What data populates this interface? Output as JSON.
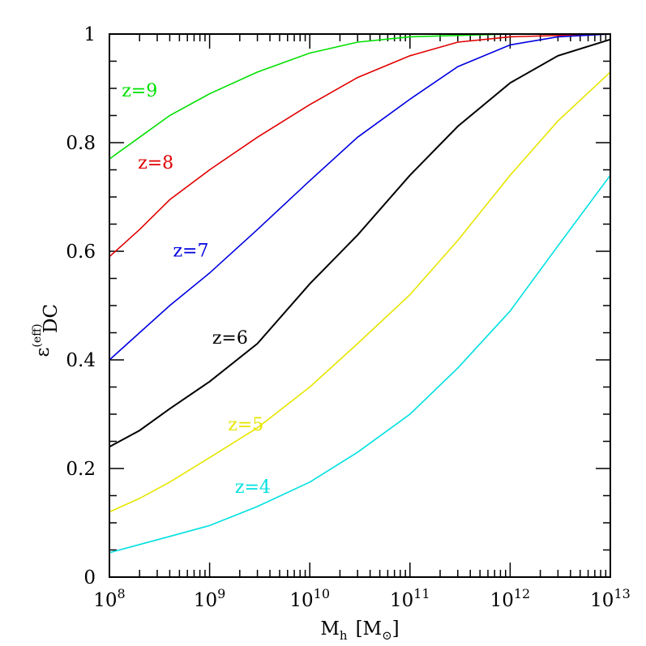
{
  "chart_data": {
    "type": "line",
    "xscale": "log",
    "xlim": [
      100000000.0,
      10000000000000.0
    ],
    "ylim": [
      0,
      1
    ],
    "xlabel": {
      "main": "M",
      "sub": "h",
      "unit": "[M",
      "unit_sub": "⊙",
      "unit_close": "]"
    },
    "ylabel": {
      "main": "ε",
      "sup": "(eff)",
      "sub": "DC"
    },
    "x_ticks": [
      {
        "value": 100000000.0,
        "base": "10",
        "exp": "8"
      },
      {
        "value": 1000000000.0,
        "base": "10",
        "exp": "9"
      },
      {
        "value": 10000000000.0,
        "base": "10",
        "exp": "10"
      },
      {
        "value": 100000000000.0,
        "base": "10",
        "exp": "11"
      },
      {
        "value": 1000000000000.0,
        "base": "10",
        "exp": "12"
      },
      {
        "value": 10000000000000.0,
        "base": "10",
        "exp": "13"
      }
    ],
    "y_ticks": [
      {
        "value": 0,
        "label": "0"
      },
      {
        "value": 0.2,
        "label": "0.2"
      },
      {
        "value": 0.4,
        "label": "0.4"
      },
      {
        "value": 0.6,
        "label": "0.6"
      },
      {
        "value": 0.8,
        "label": "0.8"
      },
      {
        "value": 1,
        "label": "1"
      }
    ],
    "grid": false,
    "series": [
      {
        "name": "z=9",
        "color": "#00e000",
        "label_x": 200000000.0,
        "label_y": 0.885,
        "points": [
          [
            100000000.0,
            0.77
          ],
          [
            200000000.0,
            0.81
          ],
          [
            400000000.0,
            0.85
          ],
          [
            1000000000.0,
            0.89
          ],
          [
            3000000000.0,
            0.93
          ],
          [
            10000000000.0,
            0.965
          ],
          [
            30000000000.0,
            0.985
          ],
          [
            100000000000.0,
            0.995
          ],
          [
            1000000000000.0,
            1.0
          ],
          [
            10000000000000.0,
            1.0
          ]
        ]
      },
      {
        "name": "z=8",
        "color": "#e00000",
        "label_x": 290000000.0,
        "label_y": 0.752,
        "points": [
          [
            100000000.0,
            0.59
          ],
          [
            200000000.0,
            0.64
          ],
          [
            400000000.0,
            0.695
          ],
          [
            1000000000.0,
            0.75
          ],
          [
            3000000000.0,
            0.81
          ],
          [
            10000000000.0,
            0.87
          ],
          [
            30000000000.0,
            0.92
          ],
          [
            100000000000.0,
            0.96
          ],
          [
            300000000000.0,
            0.985
          ],
          [
            1000000000000.0,
            0.995
          ],
          [
            10000000000000.0,
            1.0
          ]
        ]
      },
      {
        "name": "z=7",
        "color": "#0000e0",
        "label_x": 650000000.0,
        "label_y": 0.59,
        "points": [
          [
            100000000.0,
            0.4
          ],
          [
            200000000.0,
            0.45
          ],
          [
            400000000.0,
            0.5
          ],
          [
            1000000000.0,
            0.56
          ],
          [
            3000000000.0,
            0.64
          ],
          [
            10000000000.0,
            0.73
          ],
          [
            30000000000.0,
            0.81
          ],
          [
            100000000000.0,
            0.88
          ],
          [
            300000000000.0,
            0.94
          ],
          [
            1000000000000.0,
            0.98
          ],
          [
            3000000000000.0,
            0.995
          ],
          [
            10000000000000.0,
            1.0
          ]
        ]
      },
      {
        "name": "z=6",
        "color": "#000000",
        "label_x": 1600000000.0,
        "label_y": 0.43,
        "points": [
          [
            100000000.0,
            0.24
          ],
          [
            200000000.0,
            0.27
          ],
          [
            400000000.0,
            0.31
          ],
          [
            1000000000.0,
            0.36
          ],
          [
            3000000000.0,
            0.43
          ],
          [
            10000000000.0,
            0.54
          ],
          [
            30000000000.0,
            0.63
          ],
          [
            100000000000.0,
            0.74
          ],
          [
            300000000000.0,
            0.83
          ],
          [
            1000000000000.0,
            0.91
          ],
          [
            3000000000000.0,
            0.96
          ],
          [
            10000000000000.0,
            0.99
          ]
        ]
      },
      {
        "name": "z=5",
        "color": "#e6e600",
        "label_x": 2300000000.0,
        "label_y": 0.27,
        "points": [
          [
            100000000.0,
            0.12
          ],
          [
            200000000.0,
            0.145
          ],
          [
            400000000.0,
            0.175
          ],
          [
            1000000000.0,
            0.22
          ],
          [
            3000000000.0,
            0.275
          ],
          [
            10000000000.0,
            0.35
          ],
          [
            30000000000.0,
            0.43
          ],
          [
            100000000000.0,
            0.52
          ],
          [
            300000000000.0,
            0.62
          ],
          [
            1000000000000.0,
            0.74
          ],
          [
            3000000000000.0,
            0.84
          ],
          [
            10000000000000.0,
            0.93
          ]
        ]
      },
      {
        "name": "z=4",
        "color": "#00e0e0",
        "label_x": 2700000000.0,
        "label_y": 0.155,
        "points": [
          [
            100000000.0,
            0.045
          ],
          [
            200000000.0,
            0.06
          ],
          [
            400000000.0,
            0.075
          ],
          [
            1000000000.0,
            0.095
          ],
          [
            3000000000.0,
            0.13
          ],
          [
            10000000000.0,
            0.175
          ],
          [
            30000000000.0,
            0.23
          ],
          [
            100000000000.0,
            0.3
          ],
          [
            300000000000.0,
            0.385
          ],
          [
            1000000000000.0,
            0.49
          ],
          [
            3000000000000.0,
            0.61
          ],
          [
            10000000000000.0,
            0.74
          ]
        ]
      }
    ]
  }
}
